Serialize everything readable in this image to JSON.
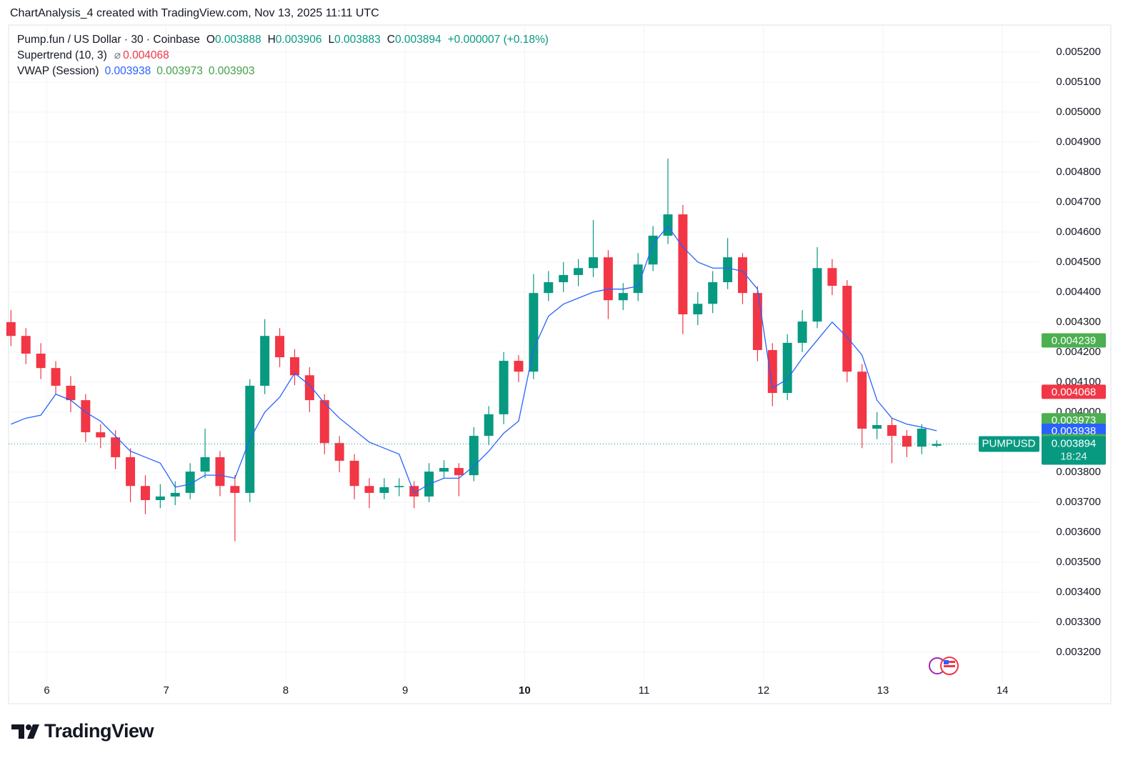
{
  "title": "ChartAnalysis_4 created with TradingView.com, Nov 13, 2025 11:11 UTC",
  "footer": {
    "brand": "TradingView"
  },
  "chart_data": {
    "type": "candlestick",
    "series": [
      {
        "name": "Pump.fun / US Dollar · 30 · Coinbase",
        "up_color": "#089981",
        "down_color": "#f23645",
        "open": [
          0.0043,
          0.004254,
          0.004195,
          0.004147,
          0.004088,
          0.00404,
          0.003933,
          0.003916,
          0.00385,
          0.003754,
          0.003707,
          0.003719,
          0.003731,
          0.003802,
          0.00385,
          0.003754,
          0.003731,
          0.004088,
          0.004254,
          0.004183,
          0.004123,
          0.00404,
          0.003897,
          0.003838,
          0.003754,
          0.003731,
          0.00375,
          0.003754,
          0.003719,
          0.003802,
          0.003814,
          0.00379,
          0.003921,
          0.003993,
          0.004171,
          0.004135,
          0.004397,
          0.004433,
          0.004457,
          0.00448,
          0.004516,
          0.004373,
          0.004397,
          0.004492,
          0.004588,
          0.004659,
          0.004326,
          0.004361,
          0.004433,
          0.004516,
          0.004397,
          0.004207,
          0.004064,
          0.004231,
          0.004302,
          0.00448,
          0.004421,
          0.004135,
          0.003945,
          0.003957,
          0.003921,
          0.003885,
          0.003888
        ],
        "high": [
          0.00434,
          0.00428,
          0.00423,
          0.00417,
          0.00412,
          0.00406,
          0.00396,
          0.00394,
          0.00388,
          0.00379,
          0.00376,
          0.00377,
          0.00383,
          0.003945,
          0.00387,
          0.00379,
          0.00411,
          0.00431,
          0.00428,
          0.00421,
          0.00415,
          0.00406,
          0.00392,
          0.00386,
          0.00378,
          0.00378,
          0.00378,
          0.00377,
          0.00383,
          0.00384,
          0.00383,
          0.00395,
          0.00402,
          0.0042,
          0.00419,
          0.00446,
          0.00447,
          0.0045,
          0.00451,
          0.00464,
          0.00454,
          0.00443,
          0.00453,
          0.00462,
          0.004845,
          0.00469,
          0.0044,
          0.00447,
          0.00458,
          0.00453,
          0.00442,
          0.00423,
          0.00426,
          0.00434,
          0.00455,
          0.00451,
          0.00444,
          0.00416,
          0.004,
          0.00398,
          0.00394,
          0.00396,
          0.003906
        ],
        "low": [
          0.00422,
          0.00416,
          0.00411,
          0.00406,
          0.004,
          0.0039,
          0.00388,
          0.00381,
          0.0037,
          0.00366,
          0.00368,
          0.00369,
          0.00371,
          0.00378,
          0.00372,
          0.00357,
          0.0037,
          0.00406,
          0.00415,
          0.00409,
          0.004,
          0.00386,
          0.0038,
          0.00371,
          0.00368,
          0.00371,
          0.00372,
          0.00368,
          0.0037,
          0.00378,
          0.00372,
          0.00377,
          0.00389,
          0.00396,
          0.0041,
          0.00411,
          0.00437,
          0.0044,
          0.00442,
          0.00445,
          0.00431,
          0.00434,
          0.00437,
          0.00447,
          0.00456,
          0.00426,
          0.00429,
          0.00433,
          0.00441,
          0.00436,
          0.00417,
          0.00402,
          0.00404,
          0.0042,
          0.00428,
          0.00439,
          0.0041,
          0.00388,
          0.00391,
          0.00383,
          0.00385,
          0.00386,
          0.003883
        ],
        "close": [
          0.004254,
          0.004195,
          0.004147,
          0.004088,
          0.00404,
          0.003933,
          0.003916,
          0.00385,
          0.003754,
          0.003707,
          0.003719,
          0.003731,
          0.003802,
          0.00385,
          0.003754,
          0.003731,
          0.004088,
          0.004254,
          0.004183,
          0.004123,
          0.00404,
          0.003897,
          0.003838,
          0.003754,
          0.003731,
          0.00375,
          0.003754,
          0.003719,
          0.003802,
          0.003814,
          0.00379,
          0.003921,
          0.003993,
          0.004171,
          0.004135,
          0.004397,
          0.004433,
          0.004457,
          0.00448,
          0.004516,
          0.004373,
          0.004397,
          0.004492,
          0.004588,
          0.004659,
          0.004326,
          0.004361,
          0.004433,
          0.004516,
          0.004397,
          0.004207,
          0.004064,
          0.004231,
          0.004302,
          0.00448,
          0.004421,
          0.004135,
          0.003945,
          0.003957,
          0.003921,
          0.003885,
          0.003945,
          0.003894
        ]
      }
    ],
    "x": [
      5.7,
      5.825,
      5.95,
      6.075,
      6.2,
      6.325,
      6.45,
      6.575,
      6.7,
      6.825,
      6.95,
      7.075,
      7.2,
      7.325,
      7.45,
      7.575,
      7.7,
      7.825,
      7.95,
      8.075,
      8.2,
      8.325,
      8.45,
      8.575,
      8.7,
      8.825,
      8.95,
      9.075,
      9.2,
      9.325,
      9.45,
      9.575,
      9.7,
      9.825,
      9.95,
      10.075,
      10.2,
      10.325,
      10.45,
      10.575,
      10.7,
      10.825,
      10.95,
      11.075,
      11.2,
      11.325,
      11.45,
      11.575,
      11.7,
      11.825,
      11.95,
      12.075,
      12.2,
      12.325,
      12.45,
      12.575,
      12.7,
      12.825,
      12.95,
      13.075,
      13.2,
      13.325,
      13.45
    ],
    "lines": [
      {
        "name": "VWAP (Session)",
        "color": "#2962ff",
        "values": [
          0.00396,
          0.00398,
          0.00399,
          0.00406,
          0.00404,
          0.004,
          0.00397,
          0.00392,
          0.00387,
          0.00385,
          0.00383,
          0.00375,
          0.00376,
          0.00379,
          0.00379,
          0.00378,
          0.00391,
          0.004,
          0.00405,
          0.00413,
          0.00409,
          0.00403,
          0.00398,
          0.00394,
          0.0039,
          0.00388,
          0.00386,
          0.00373,
          0.00376,
          0.00378,
          0.00378,
          0.00382,
          0.00387,
          0.00393,
          0.00397,
          0.00421,
          0.00432,
          0.00436,
          0.00438,
          0.0044,
          0.00441,
          0.00441,
          0.00442,
          0.00456,
          0.00462,
          0.00455,
          0.0045,
          0.00448,
          0.00448,
          0.00447,
          0.00441,
          0.00408,
          0.00411,
          0.00418,
          0.00424,
          0.0043,
          0.00425,
          0.00419,
          0.00404,
          0.00398,
          0.00396,
          0.00395,
          0.003938
        ]
      }
    ],
    "ohlc_labels": [
      "O",
      "H",
      "L",
      "C"
    ],
    "change": "+0.000007 (+0.18%)",
    "supertrend": {
      "name": "Supertrend (10, 3)",
      "symbol": "⌀",
      "value": 0.004068,
      "color": "#f23645"
    },
    "vwap_values": [
      {
        "value": 0.003938,
        "color": "#2962ff"
      },
      {
        "value": 0.003973,
        "color": "#43a047"
      },
      {
        "value": 0.003903,
        "color": "#43a047"
      }
    ],
    "price_labels": [
      {
        "value": 0.004239,
        "color": "#4caf50"
      },
      {
        "value": 0.004068,
        "color": "#f23645"
      },
      {
        "value": 0.003973,
        "color": "#4caf50"
      },
      {
        "value": 0.003938,
        "color": "#2962ff"
      },
      {
        "value": 0.003903,
        "color": "#4caf50"
      }
    ],
    "last_tag": {
      "name": "PUMPUSD",
      "countdown": "18:24",
      "color": "#089981"
    },
    "xlim": [
      5.68,
      14.31
    ],
    "xticks": [
      6,
      7,
      8,
      9,
      10,
      11,
      12,
      13,
      14
    ],
    "bold_xtick": 10,
    "ylim": [
      0.0031,
      0.00529
    ],
    "yticks": [
      {
        "value": 0.0032,
        "label": "0.003200"
      },
      {
        "value": 0.0033,
        "label": "0.003300"
      },
      {
        "value": 0.0034,
        "label": "0.003400"
      },
      {
        "value": 0.0035,
        "label": "0.003500"
      },
      {
        "value": 0.0036,
        "label": "0.003600"
      },
      {
        "value": 0.0037,
        "label": "0.003700"
      },
      {
        "value": 0.0038,
        "label": "0.003800"
      },
      {
        "value": 0.0039,
        "label": "0.003900"
      },
      {
        "value": 0.004,
        "label": "0.004000"
      },
      {
        "value": 0.0041,
        "label": "0.004100"
      },
      {
        "value": 0.0042,
        "label": "0.004200"
      },
      {
        "value": 0.0043,
        "label": "0.004300"
      },
      {
        "value": 0.0044,
        "label": "0.004400"
      },
      {
        "value": 0.0045,
        "label": "0.004500"
      },
      {
        "value": 0.0046,
        "label": "0.004600"
      },
      {
        "value": 0.0047,
        "label": "0.004700"
      },
      {
        "value": 0.0048,
        "label": "0.004800"
      },
      {
        "value": 0.0049,
        "label": "0.004900"
      },
      {
        "value": 0.005,
        "label": "0.005000"
      },
      {
        "value": 0.0051,
        "label": "0.005100"
      },
      {
        "value": 0.0052,
        "label": "0.005200"
      }
    ],
    "grid": true
  }
}
